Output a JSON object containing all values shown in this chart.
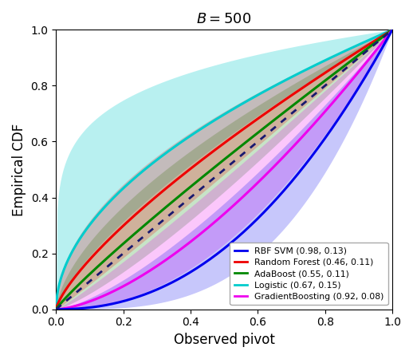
{
  "title": "$B = 500$",
  "xlabel": "Observed pivot",
  "ylabel": "Empirical CDF",
  "xlim": [
    0.0,
    1.0
  ],
  "ylim": [
    0.0,
    1.0
  ],
  "diagonal_color": "#191970",
  "methods": [
    {
      "name": "RBF SVM (0.98, 0.13)",
      "color": "#0000EE",
      "band_alpha": 0.22,
      "mean_power": 2.2,
      "lower_power": 3.2,
      "upper_power": 1.4
    },
    {
      "name": "Random Forest (0.46, 0.11)",
      "color": "#EE0000",
      "band_alpha": 0.22,
      "mean_power": 0.75,
      "lower_power": 1.05,
      "upper_power": 0.5
    },
    {
      "name": "AdaBoost (0.55, 0.11)",
      "color": "#008800",
      "band_alpha": 0.22,
      "mean_power": 0.9,
      "lower_power": 1.25,
      "upper_power": 0.62
    },
    {
      "name": "Logistic (0.67, 0.15)",
      "color": "#00CCCC",
      "band_alpha": 0.28,
      "mean_power": 0.52,
      "lower_power": 0.72,
      "upper_power": 0.18
    },
    {
      "name": "GradientBoosting (0.92, 0.08)",
      "color": "#EE00EE",
      "band_alpha": 0.22,
      "mean_power": 1.55,
      "lower_power": 2.1,
      "upper_power": 1.1
    }
  ],
  "background_color": "#ffffff"
}
